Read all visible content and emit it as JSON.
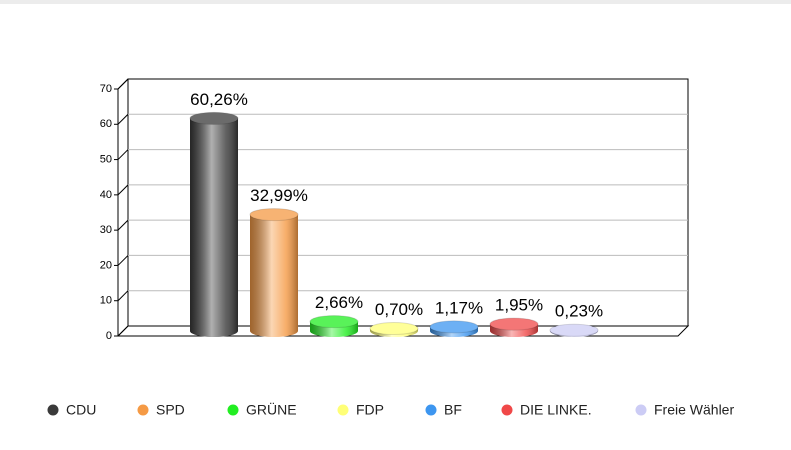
{
  "chart_data": {
    "type": "bar",
    "categories": [
      "CDU",
      "SPD",
      "GRÜNE",
      "FDP",
      "BF",
      "DIE LINKE.",
      "Freie Wähler"
    ],
    "values": [
      60.26,
      32.99,
      2.66,
      0.7,
      1.17,
      1.95,
      0.23
    ],
    "value_labels": [
      "60,26%",
      "32,99%",
      "2,66%",
      "0,70%",
      "1,17%",
      "1,95%",
      "0,23%"
    ],
    "colors": [
      "#3a3a3a",
      "#f59a45",
      "#22ee22",
      "#ffff77",
      "#3d96f0",
      "#f04848",
      "#ccccf5"
    ],
    "ylim": [
      0,
      70
    ],
    "yticks": [
      0,
      10,
      20,
      30,
      40,
      50,
      60,
      70
    ],
    "grid": true,
    "legend": "bottom"
  }
}
